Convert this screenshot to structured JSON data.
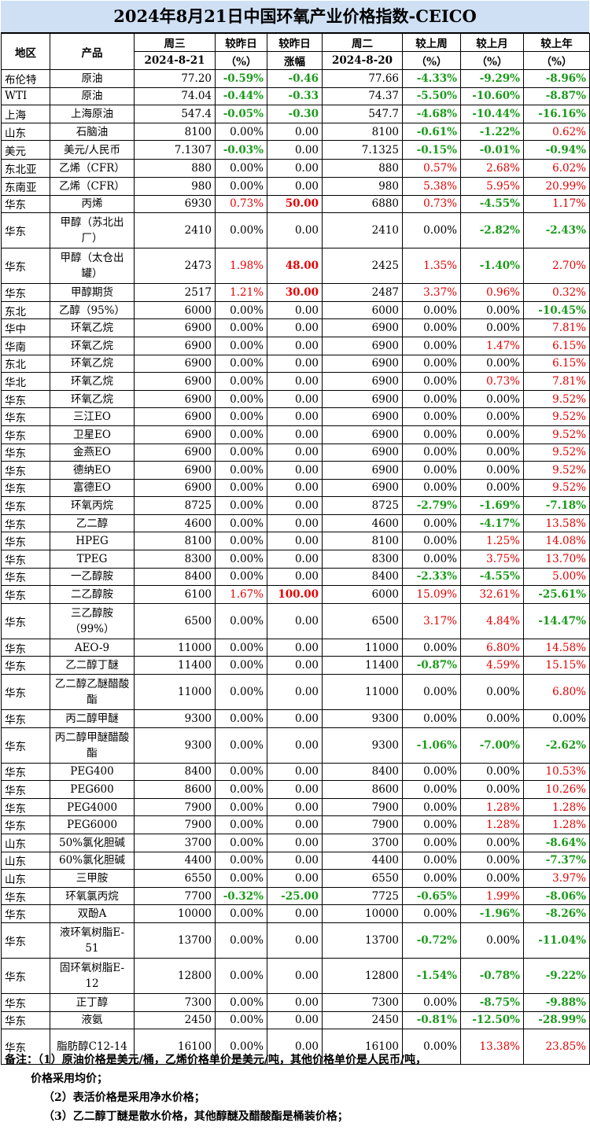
{
  "title": "2024年8月21日中国环氧产业价格指数-CEICO",
  "header": {
    "row1": [
      "地区",
      "产品",
      "周三",
      "较昨日",
      "较昨日",
      "周二",
      "较上周",
      "较上月",
      "较上年"
    ],
    "row2": [
      "2024-8-21",
      "（%）",
      "涨幅",
      "2024-8-20",
      "（%）",
      "（%）",
      "（%）"
    ]
  },
  "rows": [
    {
      "region": "布伦特",
      "product": "原油",
      "cur": "77.20",
      "pct": "-0.59%",
      "chg": "-0.46",
      "prev": "77.66",
      "wk": "-4.33%",
      "mo": "-9.29%",
      "yr": "-8.96%"
    },
    {
      "region": "WTI",
      "product": "原油",
      "cur": "74.04",
      "pct": "-0.44%",
      "chg": "-0.33",
      "prev": "74.37",
      "wk": "-5.50%",
      "mo": "-10.60%",
      "yr": "-8.87%"
    },
    {
      "region": "上海",
      "product": "上海原油",
      "cur": "547.4",
      "pct": "-0.05%",
      "chg": "-0.30",
      "prev": "547.7",
      "wk": "-4.68%",
      "mo": "-10.44%",
      "yr": "-16.16%"
    },
    {
      "region": "山东",
      "product": "石脑油",
      "cur": "8100",
      "pct": "0.00%",
      "chg": "0.00",
      "prev": "8100",
      "wk": "-0.61%",
      "mo": "-1.22%",
      "yr": "0.62%"
    },
    {
      "region": "美元",
      "product": "美元/人民币",
      "cur": "7.1307",
      "pct": "-0.03%",
      "chg": "0.00",
      "prev": "7.1325",
      "wk": "-0.15%",
      "mo": "-0.01%",
      "yr": "-0.94%"
    },
    {
      "region": "东北亚",
      "product": "乙烯（CFR）",
      "cur": "880",
      "pct": "0.00%",
      "chg": "0.00",
      "prev": "880",
      "wk": "0.57%",
      "mo": "2.68%",
      "yr": "6.02%"
    },
    {
      "region": "东南亚",
      "product": "乙烯（CFR）",
      "cur": "980",
      "pct": "0.00%",
      "chg": "0.00",
      "prev": "980",
      "wk": "5.38%",
      "mo": "5.95%",
      "yr": "20.99%"
    },
    {
      "region": "华东",
      "product": "丙烯",
      "cur": "6930",
      "pct": "0.73%",
      "chg": "50.00",
      "prev": "6880",
      "wk": "0.73%",
      "mo": "-4.55%",
      "yr": "1.17%"
    },
    {
      "region": "华东",
      "product": "甲醇（苏北出厂）",
      "cur": "2410",
      "pct": "0.00%",
      "chg": "0.00",
      "prev": "2410",
      "wk": "0.00%",
      "mo": "-2.82%",
      "yr": "-2.43%"
    },
    {
      "region": "华东",
      "product": "甲醇（太仓出罐）",
      "cur": "2473",
      "pct": "1.98%",
      "chg": "48.00",
      "prev": "2425",
      "wk": "1.35%",
      "mo": "-1.40%",
      "yr": "2.70%"
    },
    {
      "region": "华东",
      "product": "甲醇期货",
      "cur": "2517",
      "pct": "1.21%",
      "chg": "30.00",
      "prev": "2487",
      "wk": "3.37%",
      "mo": "0.96%",
      "yr": "0.32%"
    },
    {
      "region": "东北",
      "product": "乙醇（95%）",
      "cur": "6000",
      "pct": "0.00%",
      "chg": "0.00",
      "prev": "6000",
      "wk": "0.00%",
      "mo": "0.00%",
      "yr": "-10.45%"
    },
    {
      "region": "华中",
      "product": "环氧乙烷",
      "cur": "6900",
      "pct": "0.00%",
      "chg": "0.00",
      "prev": "6900",
      "wk": "0.00%",
      "mo": "0.00%",
      "yr": "7.81%"
    },
    {
      "region": "华南",
      "product": "环氧乙烷",
      "cur": "6900",
      "pct": "0.00%",
      "chg": "0.00",
      "prev": "6900",
      "wk": "0.00%",
      "mo": "1.47%",
      "yr": "6.15%"
    },
    {
      "region": "东北",
      "product": "环氧乙烷",
      "cur": "6900",
      "pct": "0.00%",
      "chg": "0.00",
      "prev": "6900",
      "wk": "0.00%",
      "mo": "0.00%",
      "yr": "6.15%"
    },
    {
      "region": "华北",
      "product": "环氧乙烷",
      "cur": "6900",
      "pct": "0.00%",
      "chg": "0.00",
      "prev": "6900",
      "wk": "0.00%",
      "mo": "0.73%",
      "yr": "7.81%"
    },
    {
      "region": "华东",
      "product": "环氧乙烷",
      "cur": "6900",
      "pct": "0.00%",
      "chg": "0.00",
      "prev": "6900",
      "wk": "0.00%",
      "mo": "0.00%",
      "yr": "9.52%"
    },
    {
      "region": "华东",
      "product": "三江EO",
      "cur": "6900",
      "pct": "0.00%",
      "chg": "0.00",
      "prev": "6900",
      "wk": "0.00%",
      "mo": "0.00%",
      "yr": "9.52%"
    },
    {
      "region": "华东",
      "product": "卫星EO",
      "cur": "6900",
      "pct": "0.00%",
      "chg": "0.00",
      "prev": "6900",
      "wk": "0.00%",
      "mo": "0.00%",
      "yr": "9.52%"
    },
    {
      "region": "华东",
      "product": "金燕EO",
      "cur": "6900",
      "pct": "0.00%",
      "chg": "0.00",
      "prev": "6900",
      "wk": "0.00%",
      "mo": "0.00%",
      "yr": "9.52%"
    },
    {
      "region": "华东",
      "product": "德纳EO",
      "cur": "6900",
      "pct": "0.00%",
      "chg": "0.00",
      "prev": "6900",
      "wk": "0.00%",
      "mo": "0.00%",
      "yr": "9.52%"
    },
    {
      "region": "华东",
      "product": "富德EO",
      "cur": "6900",
      "pct": "0.00%",
      "chg": "0.00",
      "prev": "6900",
      "wk": "0.00%",
      "mo": "0.00%",
      "yr": "9.52%"
    },
    {
      "region": "华东",
      "product": "环氧丙烷",
      "cur": "8725",
      "pct": "0.00%",
      "chg": "0.00",
      "prev": "8725",
      "wk": "-2.79%",
      "mo": "-1.69%",
      "yr": "-7.18%"
    },
    {
      "region": "华东",
      "product": "乙二醇",
      "cur": "4600",
      "pct": "0.00%",
      "chg": "0.00",
      "prev": "4600",
      "wk": "0.00%",
      "mo": "-4.17%",
      "yr": "13.58%"
    },
    {
      "region": "华东",
      "product": "HPEG",
      "cur": "8100",
      "pct": "0.00%",
      "chg": "0.00",
      "prev": "8100",
      "wk": "0.00%",
      "mo": "1.25%",
      "yr": "14.08%"
    },
    {
      "region": "华东",
      "product": "TPEG",
      "cur": "8300",
      "pct": "0.00%",
      "chg": "0.00",
      "prev": "8300",
      "wk": "0.00%",
      "mo": "3.75%",
      "yr": "13.70%"
    },
    {
      "region": "华东",
      "product": "一乙醇胺",
      "cur": "8400",
      "pct": "0.00%",
      "chg": "0.00",
      "prev": "8400",
      "wk": "-2.33%",
      "mo": "-4.55%",
      "yr": "5.00%"
    },
    {
      "region": "华东",
      "product": "二乙醇胺",
      "cur": "6100",
      "pct": "1.67%",
      "chg": "100.00",
      "prev": "6000",
      "wk": "15.09%",
      "mo": "32.61%",
      "yr": "-25.61%"
    },
    {
      "region": "华东",
      "product": "三乙醇胺（99%）",
      "cur": "6500",
      "pct": "0.00%",
      "chg": "0.00",
      "prev": "6500",
      "wk": "3.17%",
      "mo": "4.84%",
      "yr": "-14.47%"
    },
    {
      "region": "华东",
      "product": "AEO-9",
      "cur": "11000",
      "pct": "0.00%",
      "chg": "0.00",
      "prev": "11000",
      "wk": "0.00%",
      "mo": "6.80%",
      "yr": "14.58%"
    },
    {
      "region": "华东",
      "product": "乙二醇丁醚",
      "cur": "11400",
      "pct": "0.00%",
      "chg": "0.00",
      "prev": "11400",
      "wk": "-0.87%",
      "mo": "4.59%",
      "yr": "15.15%"
    },
    {
      "region": "华东",
      "product": "乙二醇乙醚醋酸酯",
      "cur": "11000",
      "pct": "0.00%",
      "chg": "0.00",
      "prev": "11000",
      "wk": "0.00%",
      "mo": "0.00%",
      "yr": "6.80%"
    },
    {
      "region": "华东",
      "product": "丙二醇甲醚",
      "cur": "9300",
      "pct": "0.00%",
      "chg": "0.00",
      "prev": "9300",
      "wk": "0.00%",
      "mo": "0.00%",
      "yr": "0.00%"
    },
    {
      "region": "华东",
      "product": "丙二醇甲醚醋酸酯",
      "cur": "9300",
      "pct": "0.00%",
      "chg": "0.00",
      "prev": "9300",
      "wk": "-1.06%",
      "mo": "-7.00%",
      "yr": "-2.62%"
    },
    {
      "region": "华东",
      "product": "PEG400",
      "cur": "8400",
      "pct": "0.00%",
      "chg": "0.00",
      "prev": "8400",
      "wk": "0.00%",
      "mo": "0.00%",
      "yr": "10.53%"
    },
    {
      "region": "华东",
      "product": "PEG600",
      "cur": "8600",
      "pct": "0.00%",
      "chg": "0.00",
      "prev": "8600",
      "wk": "0.00%",
      "mo": "0.00%",
      "yr": "10.26%"
    },
    {
      "region": "华东",
      "product": "PEG4000",
      "cur": "7900",
      "pct": "0.00%",
      "chg": "0.00",
      "prev": "7900",
      "wk": "0.00%",
      "mo": "1.28%",
      "yr": "1.28%"
    },
    {
      "region": "华东",
      "product": "PEG6000",
      "cur": "7900",
      "pct": "0.00%",
      "chg": "0.00",
      "prev": "7900",
      "wk": "0.00%",
      "mo": "1.28%",
      "yr": "1.28%"
    },
    {
      "region": "山东",
      "product": "50%氯化胆碱",
      "cur": "3700",
      "pct": "0.00%",
      "chg": "0.00",
      "prev": "3700",
      "wk": "0.00%",
      "mo": "0.00%",
      "yr": "-8.64%"
    },
    {
      "region": "山东",
      "product": "60%氯化胆碱",
      "cur": "4400",
      "pct": "0.00%",
      "chg": "0.00",
      "prev": "4400",
      "wk": "0.00%",
      "mo": "0.00%",
      "yr": "-7.37%"
    },
    {
      "region": "山东",
      "product": "三甲胺",
      "cur": "6550",
      "pct": "0.00%",
      "chg": "0.00",
      "prev": "6550",
      "wk": "0.00%",
      "mo": "0.00%",
      "yr": "3.97%"
    },
    {
      "region": "华东",
      "product": "环氧氯丙烷",
      "cur": "7700",
      "pct": "-0.32%",
      "chg": "-25.00",
      "prev": "7725",
      "wk": "-0.65%",
      "mo": "1.99%",
      "yr": "-8.06%"
    },
    {
      "region": "华东",
      "product": "双酚A",
      "cur": "10000",
      "pct": "0.00%",
      "chg": "0.00",
      "prev": "10000",
      "wk": "0.00%",
      "mo": "-1.96%",
      "yr": "-8.26%"
    },
    {
      "region": "华东",
      "product": "液环氧树脂E-51",
      "cur": "13700",
      "pct": "0.00%",
      "chg": "0.00",
      "prev": "13700",
      "wk": "-0.72%",
      "mo": "0.00%",
      "yr": "-11.04%"
    },
    {
      "region": "华东",
      "product": "固环氧树脂E-12",
      "cur": "12800",
      "pct": "0.00%",
      "chg": "0.00",
      "prev": "12800",
      "wk": "-1.54%",
      "mo": "-0.78%",
      "yr": "-9.22%"
    },
    {
      "region": "华东",
      "product": "正丁醇",
      "cur": "7300",
      "pct": "0.00%",
      "chg": "0.00",
      "prev": "7300",
      "wk": "0.00%",
      "mo": "-8.75%",
      "yr": "-9.88%"
    },
    {
      "region": "华东",
      "product": "液氨",
      "cur": "2450",
      "pct": "0.00%",
      "chg": "0.00",
      "prev": "2450",
      "wk": "-0.81%",
      "mo": "-12.50%",
      "yr": "-28.99%"
    },
    {
      "region": "华东",
      "product": "脂肪醇C12-14",
      "cur": "16100",
      "pct": "0.00%",
      "chg": "0.00",
      "prev": "16100",
      "wk": "0.00%",
      "mo": "13.38%",
      "yr": "23.85%"
    }
  ],
  "notes": {
    "label": "备注：",
    "line1": "（1）原油价格是美元/桶，乙烯价格单价是美元/吨，其他价格单价是人民币/吨，",
    "line1b": "价格采用均价；",
    "line2": "（2）表活价格是采用净水价格；",
    "line3": "（3）乙二醇丁醚是散水价格，其他醇醚及醋酸酯是桶装价格；"
  },
  "colors": {
    "up": "#e60000",
    "down": "#1a9a1a",
    "title_bg": "#cfe0f4"
  }
}
